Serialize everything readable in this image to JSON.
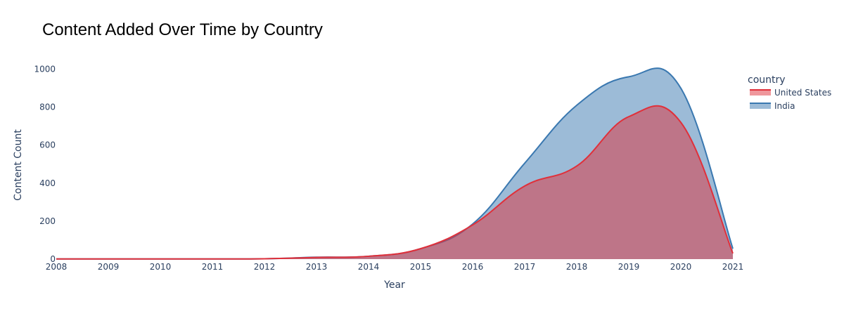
{
  "chart_data": {
    "type": "area",
    "title": "Content Added Over Time by Country",
    "xlabel": "Year",
    "ylabel": "Content Count",
    "xlim": [
      2008,
      2021
    ],
    "ylim": [
      0,
      1050
    ],
    "x_ticks": [
      2008,
      2009,
      2010,
      2011,
      2012,
      2013,
      2014,
      2015,
      2016,
      2017,
      2018,
      2019,
      2020,
      2021
    ],
    "y_ticks": [
      0,
      200,
      400,
      600,
      800,
      1000
    ],
    "grid": false,
    "stacked": false,
    "legend": {
      "title": "country",
      "placement": "top-right"
    },
    "x": [
      2008,
      2009,
      2010,
      2011,
      2012,
      2013,
      2014,
      2015,
      2016,
      2017,
      2018,
      2019,
      2020,
      2021
    ],
    "series": [
      {
        "name": "United States",
        "color": "#e0303a",
        "values": [
          1,
          1,
          1,
          1,
          2,
          9,
          15,
          55,
          180,
          385,
          490,
          750,
          720,
          30
        ]
      },
      {
        "name": "India",
        "color": "#3a78b0",
        "values": [
          1,
          1,
          1,
          1,
          2,
          10,
          15,
          55,
          185,
          505,
          810,
          960,
          900,
          55
        ]
      }
    ]
  }
}
